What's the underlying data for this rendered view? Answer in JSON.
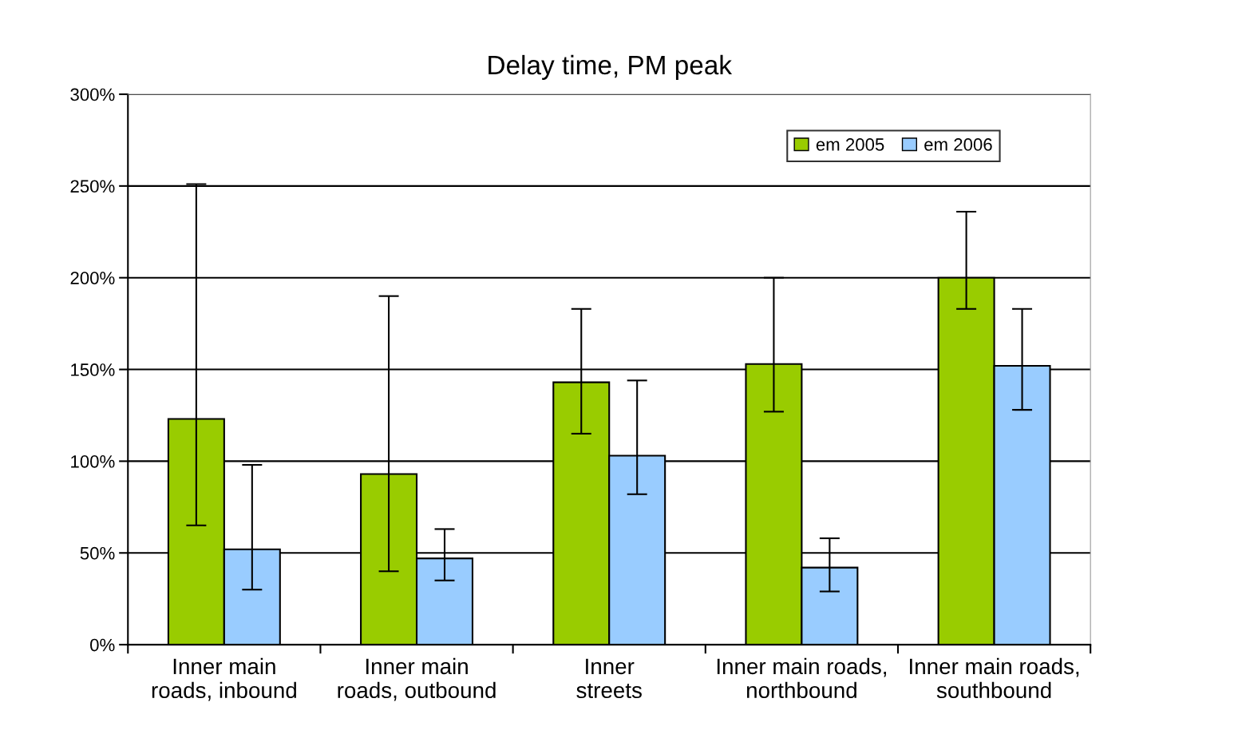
{
  "chart_data": {
    "type": "bar",
    "title": "Delay time, PM peak",
    "categories": [
      "Inner main\nroads, inbound",
      "Inner main\nroads, outbound",
      "Inner\nstreets",
      "Inner main roads,\nnorthbound",
      "Inner main roads,\nsouthbound"
    ],
    "series": [
      {
        "name": "em 2005",
        "color": "#99cc00",
        "values": [
          123,
          93,
          143,
          153,
          200
        ],
        "errors": [
          [
            65,
            251
          ],
          [
            40,
            190
          ],
          [
            115,
            183
          ],
          [
            127,
            200
          ],
          [
            183,
            236
          ]
        ]
      },
      {
        "name": "em 2006",
        "color": "#99ccff",
        "values": [
          52,
          47,
          103,
          42,
          152
        ],
        "errors": [
          [
            30,
            98
          ],
          [
            35,
            63
          ],
          [
            82,
            144
          ],
          [
            29,
            58
          ],
          [
            128,
            183
          ]
        ]
      }
    ],
    "ylim": [
      0,
      300
    ],
    "yticks": [
      {
        "value": 0,
        "label": "0%"
      },
      {
        "value": 50,
        "label": "50%"
      },
      {
        "value": 100,
        "label": "100%"
      },
      {
        "value": 150,
        "label": "150%"
      },
      {
        "value": 200,
        "label": "200%"
      },
      {
        "value": 250,
        "label": "250%"
      },
      {
        "value": 300,
        "label": "300%"
      }
    ],
    "grid": "y",
    "legend": "top right"
  }
}
